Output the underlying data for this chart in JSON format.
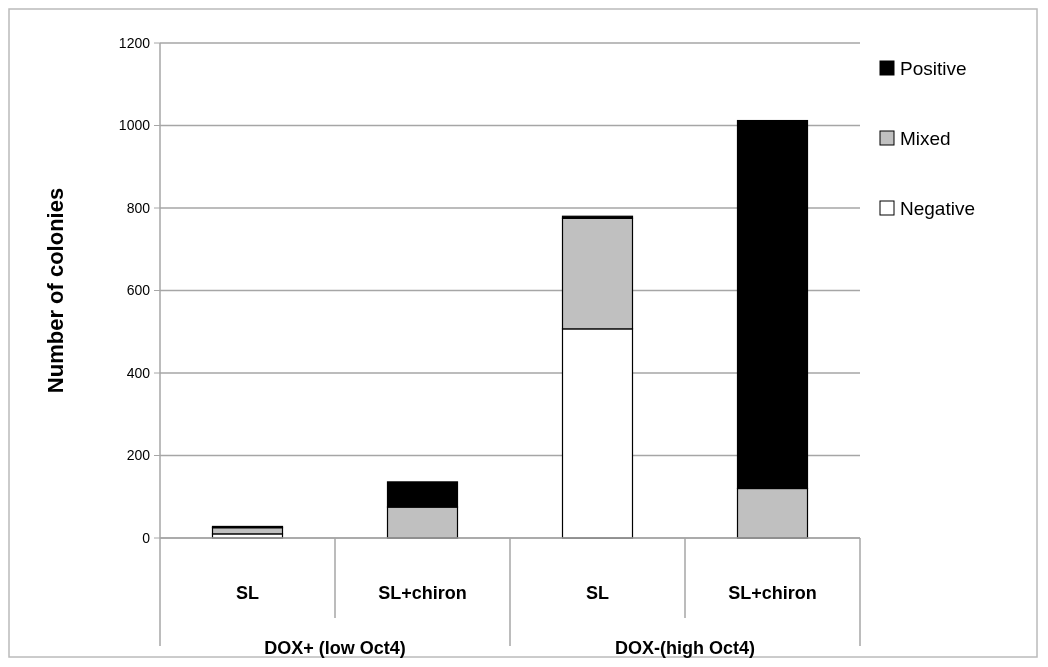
{
  "chart_data": {
    "type": "bar",
    "stacked": true,
    "ylabel": "Number of colonies",
    "categories": [
      "SL",
      "SL+chiron",
      "SL",
      "SL+chiron"
    ],
    "series": [
      {
        "name": "Negative",
        "color": "#ffffff",
        "values": [
          10,
          0,
          507,
          0
        ]
      },
      {
        "name": "Mixed",
        "color": "#c0c0c0",
        "values": [
          15,
          75,
          268,
          120
        ]
      },
      {
        "name": "Positive",
        "color": "#000000",
        "values": [
          3,
          61,
          5,
          892
        ]
      }
    ],
    "annotations": [
      "DOX+ (low Oct4)",
      "DOX-(high Oct4)"
    ],
    "ylim": [
      0,
      1200
    ],
    "yticks": [
      0,
      200,
      400,
      600,
      800,
      1000,
      1200
    ],
    "grid": "y",
    "legend": "right"
  }
}
